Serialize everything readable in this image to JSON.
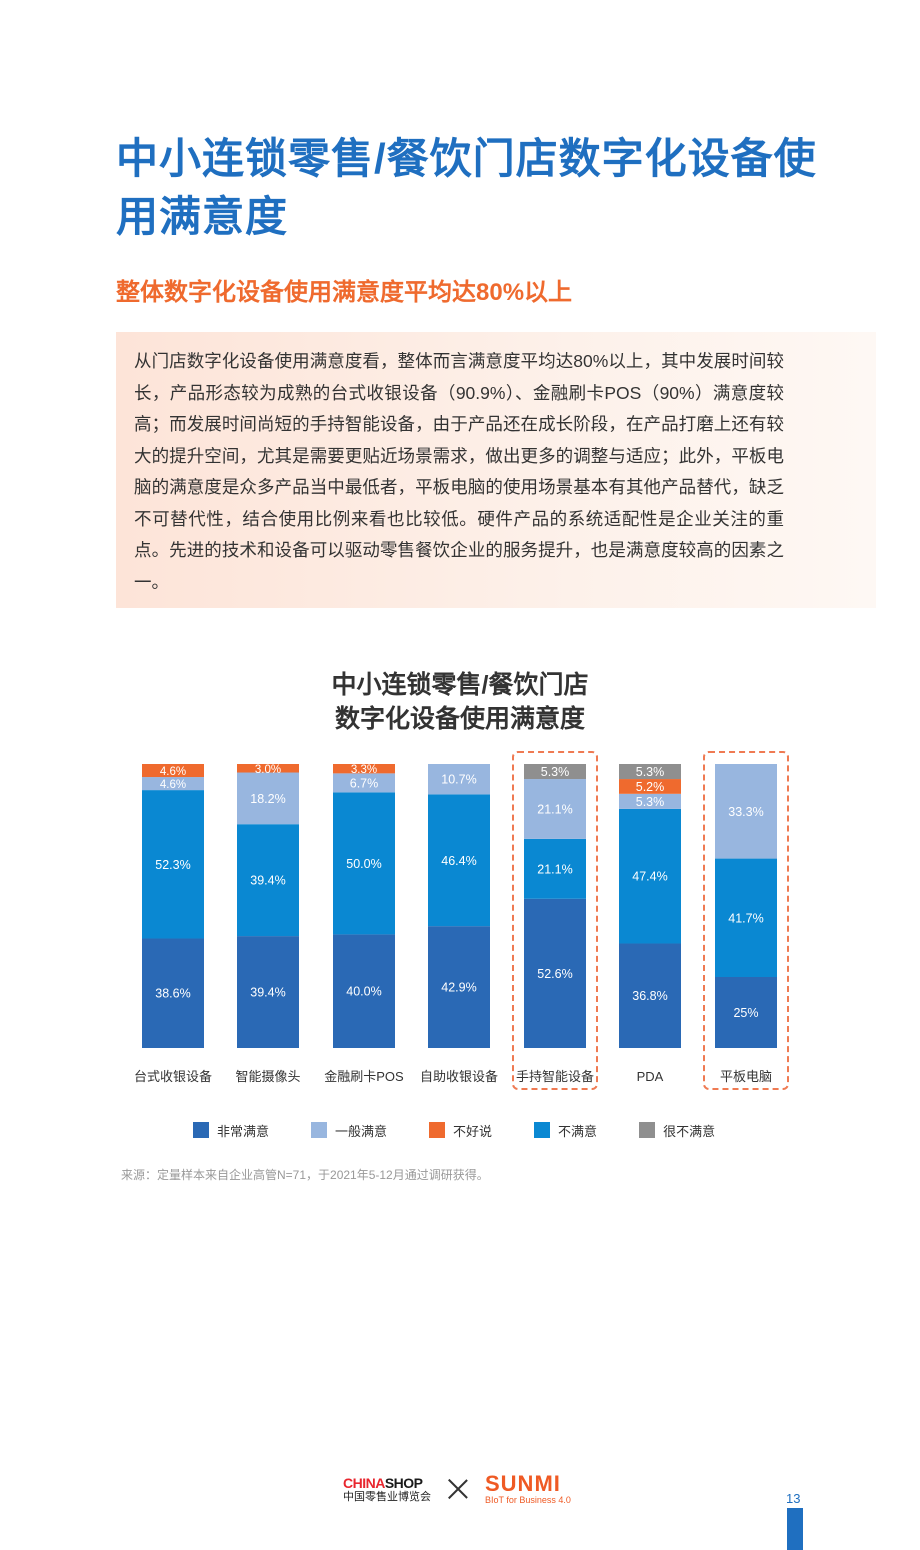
{
  "page": {
    "title": "中小连锁零售/餐饮门店数字化设备使用满意度",
    "subtitle": "整体数字化设备使用满意度平均达80%以上",
    "intro": "从门店数字化设备使用满意度看，整体而言满意度平均达80%以上，其中发展时间较长，产品形态较为成熟的台式收银设备（90.9%）、金融刷卡POS（90%）满意度较高；而发展时间尚短的手持智能设备，由于产品还在成长阶段，在产品打磨上还有较大的提升空间，尤其是需要更贴近场景需求，做出更多的调整与适应；此外，平板电脑的满意度是众多产品当中最低者，平板电脑的使用场景基本有其他产品替代，缺乏不可替代性，结合使用比例来看也比较低。硬件产品的系统适配性是企业关注的重点。先进的技术和设备可以驱动零售餐饮企业的服务提升，也是满意度较高的因素之一。",
    "source": "来源：定量样本来自企业高管N=71，于2021年5-12月通过调研获得。",
    "page_number": "13"
  },
  "footer": {
    "chinashop_part1": "CHINA",
    "chinashop_part2": "SHOP",
    "chinashop_sub": "中国零售业博览会",
    "sunmi_name": "SUNMI",
    "sunmi_tagline": "BIoT for Business 4.0",
    "chinashop_color1": "#e8262e",
    "chinashop_color2": "#1a1a1a",
    "sunmi_color": "#ef5a24",
    "separator_icon": "cross-icon"
  },
  "chart_data": {
    "type": "bar",
    "stacked": true,
    "normalized_percent": true,
    "title": "中小连锁零售/餐饮门店\n数字化设备使用满意度",
    "title_lines": [
      "中小连锁零售/餐饮门店",
      "数字化设备使用满意度"
    ],
    "categories": [
      "台式收银设备",
      "智能摄像头",
      "金融刷卡POS",
      "自助收银设备",
      "手持智能设备",
      "PDA",
      "平板电脑"
    ],
    "highlighted_categories": [
      "手持智能设备",
      "平板电脑"
    ],
    "legend_position": "bottom",
    "series": [
      {
        "name": "非常满意",
        "color": "#2a69b5",
        "values": [
          38.6,
          39.4,
          40.0,
          42.9,
          52.6,
          36.8,
          25
        ],
        "labels": [
          "38.6%",
          "39.4%",
          "40.0%",
          "42.9%",
          "52.6%",
          "36.8%",
          "25%"
        ]
      },
      {
        "name": "不满意",
        "color": "#0a88d2",
        "values": [
          52.3,
          39.4,
          50.0,
          46.4,
          21.1,
          47.4,
          41.7
        ],
        "labels": [
          "52.3%",
          "39.4%",
          "50.0%",
          "46.4%",
          "21.1%",
          "47.4%",
          "41.7%"
        ]
      },
      {
        "name": "一般满意",
        "color": "#98b6df",
        "values": [
          4.6,
          18.2,
          6.7,
          10.7,
          21.1,
          5.3,
          33.3
        ],
        "labels": [
          "4.6%",
          "18.2%",
          "6.7%",
          "10.7%",
          "21.1%",
          "5.3%",
          "33.3%"
        ]
      },
      {
        "name": "不好说",
        "color": "#ef6a2e",
        "values": [
          4.6,
          3.0,
          3.3,
          0,
          0,
          5.2,
          0
        ],
        "labels": [
          "4.6%",
          "3.0%",
          "3.3%",
          "",
          "",
          "5.2%",
          ""
        ]
      },
      {
        "name": "很不满意",
        "color": "#8f8f8f",
        "values": [
          0,
          0,
          0,
          0,
          5.3,
          5.3,
          0
        ],
        "labels": [
          "",
          "",
          "",
          "",
          "5.3%",
          "5.3%",
          ""
        ]
      }
    ],
    "legend_order": [
      "非常满意",
      "一般满意",
      "不好说",
      "不满意",
      "很不满意"
    ]
  }
}
